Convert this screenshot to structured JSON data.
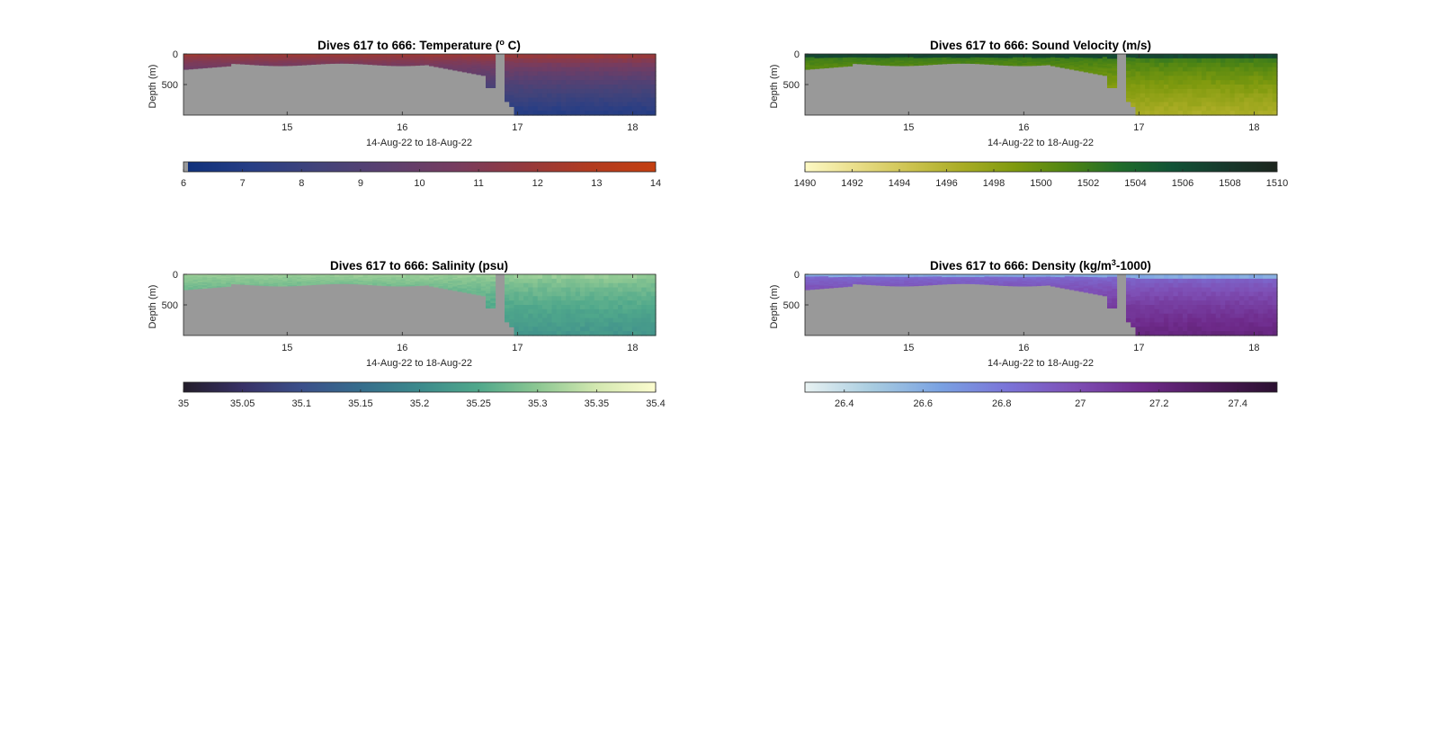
{
  "chart_data": [
    {
      "type": "heatmap",
      "title_main": "Dives 617 to 666: Temperature (",
      "title_sup": "o",
      "title_post": " C)",
      "xlabel": "14-Aug-22 to 18-Aug-22",
      "ylabel": "Depth (m)",
      "xlim": [
        14.1,
        18.2
      ],
      "ylim": [
        1000,
        0
      ],
      "xticks": [
        "15",
        "16",
        "17",
        "18"
      ],
      "yticks": [
        "0",
        "500"
      ],
      "colorbar": {
        "range": [
          6,
          14
        ],
        "ticks": [
          "6",
          "7",
          "8",
          "9",
          "10",
          "11",
          "12",
          "13",
          "14"
        ],
        "colors": [
          "#0d2f7a",
          "#273e85",
          "#42437a",
          "#5b4070",
          "#763c60",
          "#93393f",
          "#b13b20",
          "#c43f10"
        ]
      },
      "field": {
        "surface_value": 12.6,
        "deep_value": 7.0
      }
    },
    {
      "type": "heatmap",
      "title_main": "Dives 617 to 666: Sound Velocity (m/s)",
      "title_sup": "",
      "title_post": "",
      "xlabel": "14-Aug-22 to 18-Aug-22",
      "ylabel": "Depth (m)",
      "xlim": [
        14.1,
        18.2
      ],
      "ylim": [
        1000,
        0
      ],
      "xticks": [
        "15",
        "16",
        "17",
        "18"
      ],
      "yticks": [
        "0",
        "500"
      ],
      "colorbar": {
        "range": [
          1490,
          1510
        ],
        "ticks": [
          "1490",
          "1492",
          "1494",
          "1496",
          "1498",
          "1500",
          "1502",
          "1504",
          "1506",
          "1508",
          "1510"
        ],
        "colors": [
          "#fdf9c4",
          "#e9dd88",
          "#cdc350",
          "#a9ac24",
          "#7f9a0e",
          "#4f8513",
          "#1f6c2a",
          "#115236",
          "#17392c",
          "#1c251d"
        ]
      },
      "field": {
        "surface_value": 1503.5,
        "deep_value": 1496.5
      }
    },
    {
      "type": "heatmap",
      "title_main": "Dives 617 to 666: Salinity (psu)",
      "title_sup": "",
      "title_post": "",
      "xlabel": "14-Aug-22 to 18-Aug-22",
      "ylabel": "Depth (m)",
      "xlim": [
        14.1,
        18.2
      ],
      "ylim": [
        1000,
        0
      ],
      "xticks": [
        "15",
        "16",
        "17",
        "18"
      ],
      "yticks": [
        "0",
        "500"
      ],
      "colorbar": {
        "range": [
          35,
          35.4
        ],
        "ticks": [
          "35",
          "35.05",
          "35.1",
          "35.15",
          "35.2",
          "35.25",
          "35.3",
          "35.35",
          "35.4"
        ],
        "colors": [
          "#231d2a",
          "#383166",
          "#3b4f8a",
          "#366d8c",
          "#3c8a8c",
          "#50a88b",
          "#8cc792",
          "#d3e8b0",
          "#fcfccf"
        ]
      },
      "field": {
        "surface_value": 35.32,
        "deep_value": 35.22
      }
    },
    {
      "type": "heatmap",
      "title_main": "Dives 617 to 666: Density (kg/m",
      "title_sup": "3",
      "title_post": "-1000)",
      "xlabel": "14-Aug-22 to 18-Aug-22",
      "ylabel": "Depth (m)",
      "xlim": [
        14.1,
        18.2
      ],
      "ylim": [
        1000,
        0
      ],
      "xticks": [
        "15",
        "16",
        "17",
        "18"
      ],
      "yticks": [
        "0",
        "500"
      ],
      "colorbar": {
        "range": [
          26.3,
          27.5
        ],
        "ticks": [
          "26.4",
          "26.6",
          "26.8",
          "27",
          "27.2",
          "27.4"
        ],
        "colors": [
          "#e8f2f2",
          "#a8cce0",
          "#7aa2e2",
          "#7b74d8",
          "#7e4fb5",
          "#6e2a8a",
          "#4d1b5a",
          "#2b1030"
        ]
      },
      "field": {
        "surface_value": 26.8,
        "deep_value": 27.2
      }
    }
  ],
  "colors": {
    "nodata": "#999999",
    "axis": "#262626",
    "background": "#ffffff"
  }
}
